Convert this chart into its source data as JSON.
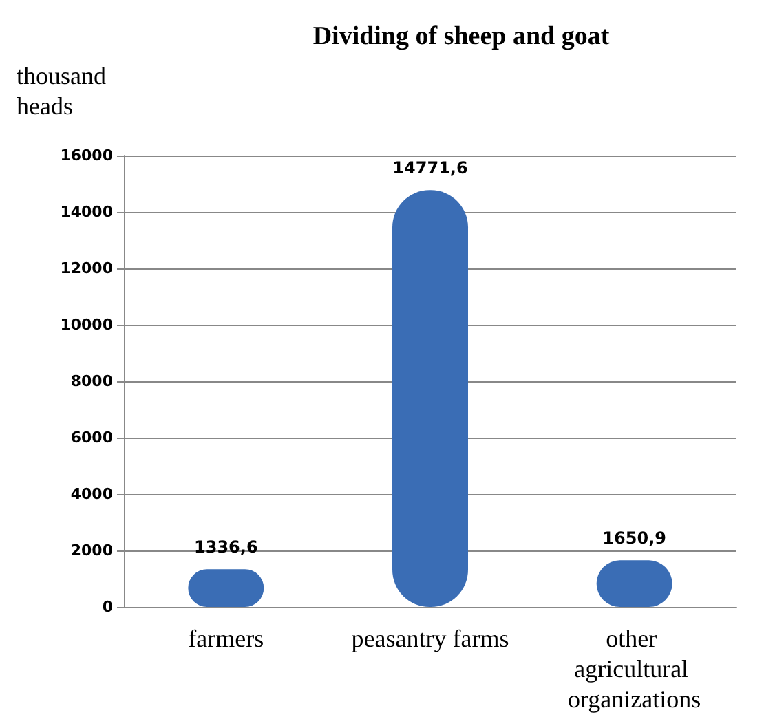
{
  "chart_data": {
    "type": "bar",
    "title": "Dividing of sheep and goat",
    "ylabel": "thousand heads",
    "categories": [
      "farmers",
      "peasantry farms",
      "other agricultural organizations"
    ],
    "values": [
      1336.6,
      14771.6,
      1650.9
    ],
    "value_labels": [
      "1336,6",
      "14771,6",
      "1650,9"
    ],
    "color": "#3a6db5",
    "ylim": [
      0,
      16000
    ],
    "yticks": [
      0,
      2000,
      4000,
      6000,
      8000,
      10000,
      12000,
      14000,
      16000
    ],
    "grid": "y"
  }
}
